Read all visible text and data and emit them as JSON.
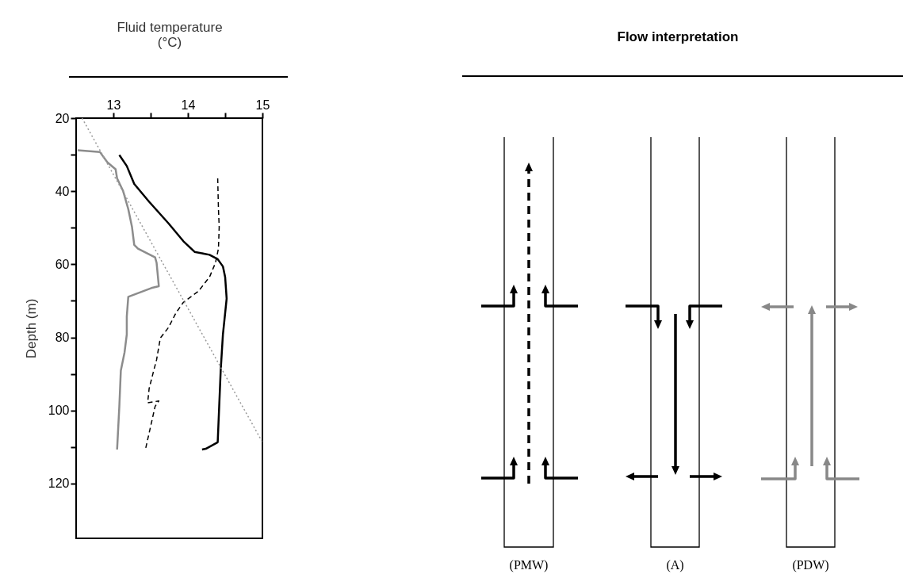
{
  "chart_data": [
    {
      "type": "line",
      "xlabel": "Fluid temperature (°C)",
      "ylabel": "Depth (m)",
      "xlim": [
        12.5,
        15
      ],
      "xticks": [
        13,
        {
          "value": 13.5,
          "label": null
        },
        14,
        {
          "value": 14.5,
          "label": null
        },
        15
      ],
      "ylim": [
        135,
        20
      ],
      "yticks": [
        20,
        {
          "value": 30,
          "label": null
        },
        40,
        {
          "value": 50,
          "label": null
        },
        60,
        {
          "value": 70,
          "label": null
        },
        80,
        {
          "value": 90,
          "label": null
        },
        100,
        {
          "value": 110,
          "label": null
        },
        120
      ],
      "series": [
        {
          "color": "#8c8c8c",
          "line_style": "solid",
          "x": [
            12.52,
            12.82,
            12.92,
            13.03,
            13.05,
            13.13,
            13.2,
            13.25,
            13.28,
            13.33,
            13.56,
            13.58,
            13.61,
            13.51,
            13.2,
            13.18,
            13.18,
            13.15,
            13.1,
            13.08,
            13.05
          ],
          "values": [
            28.8,
            29.3,
            32.1,
            34,
            36.5,
            39.9,
            44.9,
            49.8,
            54.7,
            55.7,
            58.1,
            59.6,
            66,
            66.5,
            68.9,
            74.3,
            79.2,
            84.1,
            89.1,
            98.9,
            110.7
          ]
        },
        {
          "color": "#000000",
          "line_style": "solid",
          "x": [
            13.08,
            13.18,
            13.28,
            13.48,
            13.74,
            13.94,
            14.09,
            14.29,
            14.4,
            14.47,
            14.5,
            14.52,
            14.47,
            14.44,
            14.42,
            14.4,
            14.24,
            14.19
          ],
          "values": [
            30.1,
            33.1,
            38,
            42.9,
            48.8,
            53.7,
            56.6,
            57.4,
            58.6,
            60.6,
            63.5,
            69.4,
            79.2,
            89.1,
            98.9,
            108.7,
            110.5,
            110.7
          ]
        },
        {
          "color": "#000000",
          "line_style": "dashed",
          "x": [
            14.4,
            14.41,
            14.42,
            14.41,
            14.37,
            14.29,
            14.14,
            13.94,
            13.84,
            13.74,
            13.63,
            13.58,
            13.53,
            13.48,
            13.46,
            13.61,
            13.56,
            13.43
          ],
          "values": [
            36.5,
            44.9,
            49.8,
            55.7,
            59.6,
            63.5,
            67.4,
            70.4,
            73.3,
            77.3,
            80.2,
            86.1,
            90,
            94,
            97.9,
            97.4,
            98.9,
            110.7
          ]
        },
        {
          "color": "#999999",
          "line_style": "dotted",
          "x": [
            12.58,
            15
          ],
          "values": [
            20,
            108.7
          ]
        }
      ]
    },
    {
      "type": "other",
      "title": "Flow interpretation",
      "annotations": [
        "(PMW)",
        "(A)",
        "(PDW)"
      ]
    }
  ]
}
